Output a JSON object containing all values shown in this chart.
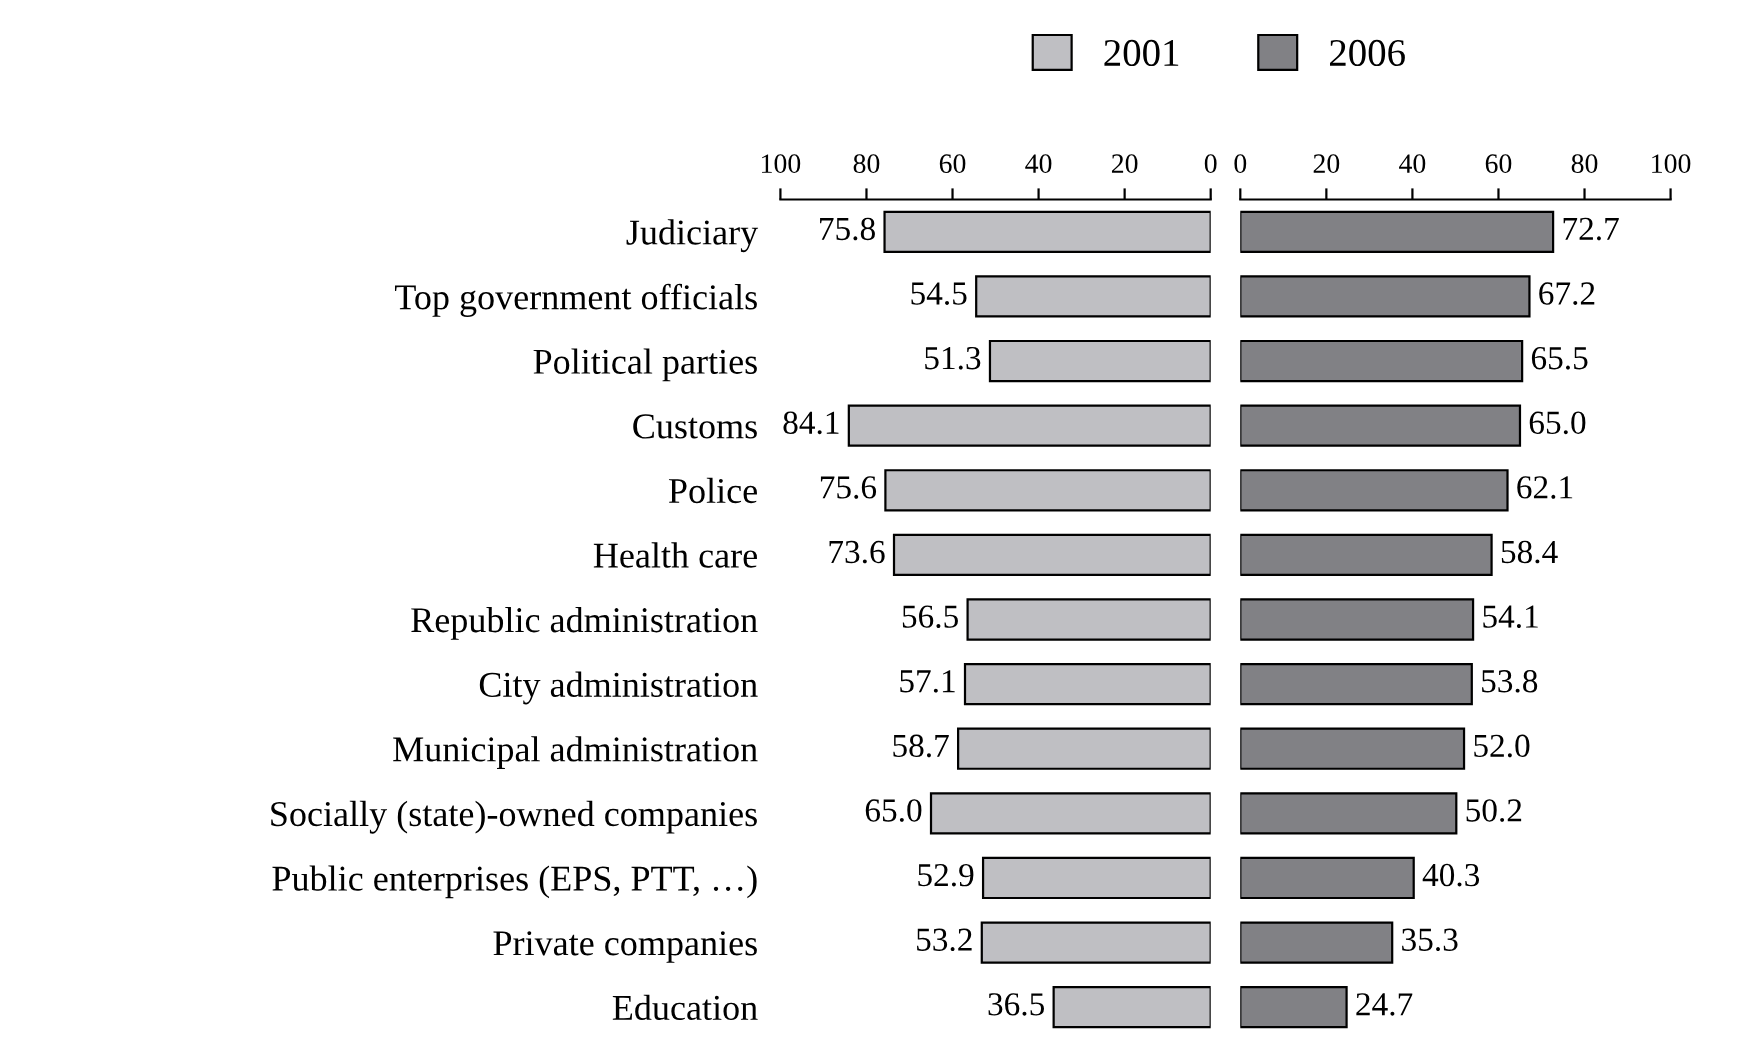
{
  "chart_data": [
    {
      "type": "bar",
      "orientation": "horizontal",
      "legend": "top",
      "categories": [
        "Judiciary",
        "Top government officials",
        "Political parties",
        "Customs",
        "Police",
        "Health care",
        "Republic administration",
        "City administration",
        "Municipal administration",
        "Socially (state)-owned companies",
        "Public enterprises (EPS, PTT, …)",
        "Private companies",
        "Education"
      ],
      "series": [
        {
          "name": "2001",
          "color": "#bfbfc3",
          "values": [
            75.8,
            54.5,
            51.3,
            84.1,
            75.6,
            73.6,
            56.5,
            57.1,
            58.7,
            65.0,
            52.9,
            53.2,
            36.5
          ],
          "value_labels": [
            "75.8",
            "54.5",
            "51.3",
            "84.1",
            "75.6",
            "73.6",
            "56.5",
            "57.1",
            "58.7",
            "65.0",
            "52.9",
            "53.2",
            "36.5"
          ]
        }
      ],
      "xlim": [
        100,
        0
      ],
      "xticks": [
        100,
        80,
        60,
        40,
        20,
        0
      ]
    },
    {
      "type": "bar",
      "orientation": "horizontal",
      "legend": "top",
      "tick_labels": "x",
      "categories": [
        null,
        null,
        null,
        null,
        null,
        null,
        null,
        null,
        null,
        null,
        null,
        null,
        null
      ],
      "series": [
        {
          "name": "2006",
          "color": "#818185",
          "values": [
            72.7,
            67.2,
            65.5,
            65.0,
            62.1,
            58.4,
            54.1,
            53.8,
            52.0,
            50.2,
            40.3,
            35.3,
            24.7
          ],
          "value_labels": [
            "72.7",
            "67.2",
            "65.5",
            "65.0",
            "62.1",
            "58.4",
            "54.1",
            "53.8",
            "52.0",
            "50.2",
            "40.3",
            "35.3",
            "24.7"
          ]
        }
      ],
      "xlim": [
        0,
        100
      ],
      "xticks": [
        0,
        20,
        40,
        60,
        80,
        100
      ]
    }
  ]
}
